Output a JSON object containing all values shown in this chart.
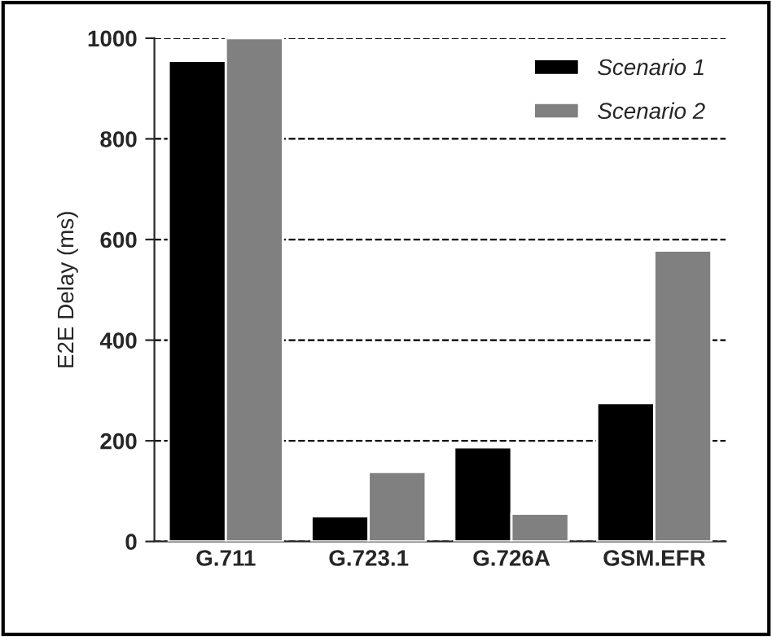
{
  "chart_data": {
    "type": "bar",
    "ylabel": "E2E Delay (ms)",
    "categories": [
      "G.711",
      "G.723.1",
      "G.726A",
      "GSM.EFR"
    ],
    "series": [
      {
        "name": "Scenario 1",
        "color": "#000000",
        "values": [
          955,
          50,
          187,
          275
        ]
      },
      {
        "name": "Scenario 2",
        "color": "#808080",
        "values": [
          1000,
          138,
          55,
          578
        ]
      }
    ],
    "ylim": [
      0,
      1000
    ],
    "yticks": [
      0,
      200,
      400,
      600,
      800,
      1000
    ],
    "grid": "y",
    "line_style": "dashed",
    "legend": "top right"
  }
}
